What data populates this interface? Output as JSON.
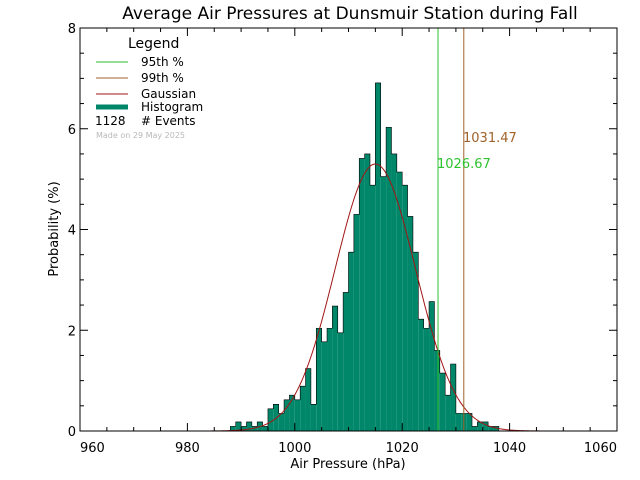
{
  "chart_data": {
    "type": "bar",
    "title": "Average Air Pressures at Dunsmuir Station during Fall",
    "xlabel": "Air Pressure (hPa)",
    "ylabel": "Probability (%)",
    "xlim": [
      960,
      1060
    ],
    "ylim": [
      0,
      8
    ],
    "x_ticks": [
      "960",
      "980",
      "1000",
      "1020",
      "1040",
      "1060"
    ],
    "y_ticks": [
      "0",
      "2",
      "4",
      "6",
      "8"
    ],
    "bin_width": 1,
    "bins": [
      {
        "x": 988,
        "y": 0.09
      },
      {
        "x": 989,
        "y": 0.18
      },
      {
        "x": 990,
        "y": 0.09
      },
      {
        "x": 991,
        "y": 0.18
      },
      {
        "x": 992,
        "y": 0.09
      },
      {
        "x": 993,
        "y": 0.18
      },
      {
        "x": 994,
        "y": 0.09
      },
      {
        "x": 995,
        "y": 0.44
      },
      {
        "x": 996,
        "y": 0.53
      },
      {
        "x": 997,
        "y": 0.35
      },
      {
        "x": 998,
        "y": 0.62
      },
      {
        "x": 999,
        "y": 0.71
      },
      {
        "x": 1000,
        "y": 0.62
      },
      {
        "x": 1001,
        "y": 0.89
      },
      {
        "x": 1002,
        "y": 1.24
      },
      {
        "x": 1003,
        "y": 0.53
      },
      {
        "x": 1004,
        "y": 2.04
      },
      {
        "x": 1005,
        "y": 1.77
      },
      {
        "x": 1006,
        "y": 2.04
      },
      {
        "x": 1007,
        "y": 2.48
      },
      {
        "x": 1008,
        "y": 1.95
      },
      {
        "x": 1009,
        "y": 2.75
      },
      {
        "x": 1010,
        "y": 3.55
      },
      {
        "x": 1011,
        "y": 4.3
      },
      {
        "x": 1012,
        "y": 5.41
      },
      {
        "x": 1013,
        "y": 5.5
      },
      {
        "x": 1014,
        "y": 4.88
      },
      {
        "x": 1015,
        "y": 6.91
      },
      {
        "x": 1016,
        "y": 5.05
      },
      {
        "x": 1017,
        "y": 6.03
      },
      {
        "x": 1018,
        "y": 5.5
      },
      {
        "x": 1019,
        "y": 5.14
      },
      {
        "x": 1020,
        "y": 4.88
      },
      {
        "x": 1021,
        "y": 4.26
      },
      {
        "x": 1022,
        "y": 3.55
      },
      {
        "x": 1023,
        "y": 2.22
      },
      {
        "x": 1024,
        "y": 2.04
      },
      {
        "x": 1025,
        "y": 2.57
      },
      {
        "x": 1026,
        "y": 1.6
      },
      {
        "x": 1027,
        "y": 1.15
      },
      {
        "x": 1028,
        "y": 0.71
      },
      {
        "x": 1029,
        "y": 1.33
      },
      {
        "x": 1030,
        "y": 0.35
      },
      {
        "x": 1031,
        "y": 0.35
      },
      {
        "x": 1032,
        "y": 0.35
      },
      {
        "x": 1033,
        "y": 0.09
      },
      {
        "x": 1034,
        "y": 0.18
      },
      {
        "x": 1035,
        "y": 0.18
      },
      {
        "x": 1036,
        "y": 0.09
      },
      {
        "x": 1037,
        "y": 0.09
      }
    ],
    "gaussian": {
      "mean": 1015.0,
      "sd": 7.5,
      "peak": 5.3
    },
    "percentile_95": 1026.67,
    "percentile_99": 1031.47,
    "p95_label": "1026.67",
    "p99_label": "1031.47",
    "colors": {
      "histogram": "#00876a",
      "gaussian": "#a31515",
      "p95": "#2ec22e",
      "p99": "#a0622a",
      "axes": "#000000"
    },
    "legend": {
      "title": "Legend",
      "items": [
        "95th %",
        "99th %",
        "Gaussian",
        "Histogram"
      ],
      "events_count": "1128",
      "events_label": "# Events",
      "made_on": "Made on 29 May 2025",
      "placement": "top-left"
    },
    "grid": false
  }
}
